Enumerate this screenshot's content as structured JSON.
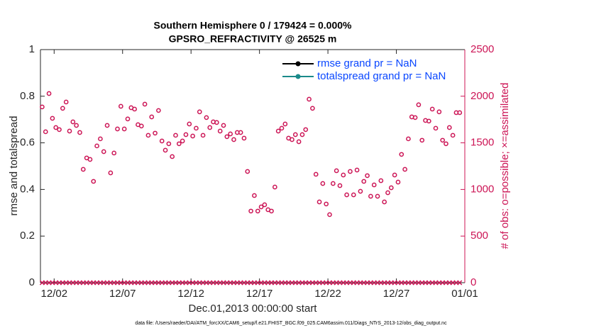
{
  "chart_data": {
    "type": "scatter",
    "title": "Southern Hemisphere 0 / 179424 = 0.000%",
    "subtitle": "GPSRO_REFRACTIVITY @ 26525 m",
    "xlabel": "Dec.01,2013 00:00:00 start",
    "ylabel": "rmse and totalspread",
    "y2label": "# of obs: o=possible; ×=assimilated",
    "footnote": "data file: /Users/raeder/DAI/ATM_forcXX/CAM6_setup/f.e21.FHIST_BGC.f09_025.CAM6assim.011/Diags_NTrS_2013-12/obs_diag_output.nc",
    "legend_position": "upper right",
    "legend": [
      {
        "name": "rmse grand pr = NaN",
        "color": "#000000"
      },
      {
        "name": "totalspread grand pr = NaN",
        "color": "#1a8a8a"
      }
    ],
    "xlim": [
      0,
      31
    ],
    "xticks": [
      {
        "value": 1,
        "label": "12/02"
      },
      {
        "value": 6,
        "label": "12/07"
      },
      {
        "value": 11,
        "label": "12/12"
      },
      {
        "value": 16,
        "label": "12/17"
      },
      {
        "value": 21,
        "label": "12/22"
      },
      {
        "value": 26,
        "label": "12/27"
      },
      {
        "value": 31,
        "label": "01/01"
      }
    ],
    "ylim": [
      0,
      1
    ],
    "yticks": [
      0,
      0.2,
      0.4,
      0.6,
      0.8,
      1
    ],
    "y2lim": [
      0,
      2500
    ],
    "y2ticks": [
      0,
      500,
      1000,
      1500,
      2000,
      2500
    ],
    "x": [
      0.125,
      0.375,
      0.625,
      0.875,
      1.125,
      1.375,
      1.625,
      1.875,
      2.125,
      2.375,
      2.625,
      2.875,
      3.125,
      3.375,
      3.625,
      3.875,
      4.125,
      4.375,
      4.625,
      4.875,
      5.125,
      5.375,
      5.625,
      5.875,
      6.125,
      6.375,
      6.625,
      6.875,
      7.125,
      7.375,
      7.625,
      7.875,
      8.125,
      8.375,
      8.625,
      8.875,
      9.125,
      9.375,
      9.625,
      9.875,
      10.125,
      10.375,
      10.625,
      10.875,
      11.125,
      11.375,
      11.625,
      11.875,
      12.125,
      12.375,
      12.625,
      12.875,
      13.125,
      13.375,
      13.625,
      13.875,
      14.125,
      14.375,
      14.625,
      14.875,
      15.125,
      15.375,
      15.625,
      15.875,
      16.125,
      16.375,
      16.625,
      16.875,
      17.125,
      17.375,
      17.625,
      17.875,
      18.125,
      18.375,
      18.625,
      18.875,
      19.125,
      19.375,
      19.625,
      19.875,
      20.125,
      20.375,
      20.625,
      20.875,
      21.125,
      21.375,
      21.625,
      21.875,
      22.125,
      22.375,
      22.625,
      22.875,
      23.125,
      23.375,
      23.625,
      23.875,
      24.125,
      24.375,
      24.625,
      24.875,
      25.125,
      25.375,
      25.625,
      25.875,
      26.125,
      26.375,
      26.625,
      26.875,
      27.125,
      27.375,
      27.625,
      27.875,
      28.125,
      28.375,
      28.625,
      28.875,
      29.125,
      29.375,
      29.625,
      29.875,
      30.125,
      30.375,
      30.625
    ],
    "series": [
      {
        "name": "possible",
        "marker": "o",
        "color": "#cc1455",
        "axis": "y2",
        "values": [
          1885,
          1619,
          2029,
          1763,
          1664,
          1642,
          1870,
          1938,
          1626,
          1725,
          1687,
          1611,
          1216,
          1338,
          1322,
          1087,
          1467,
          1543,
          1406,
          1687,
          1178,
          1391,
          1649,
          1892,
          1649,
          1756,
          1877,
          1862,
          1695,
          1680,
          1915,
          1581,
          1778,
          1604,
          1847,
          1520,
          1421,
          1490,
          1353,
          1581,
          1490,
          1520,
          1588,
          1702,
          1573,
          1657,
          1832,
          1581,
          1771,
          1664,
          1725,
          1718,
          1626,
          1687,
          1566,
          1596,
          1535,
          1611,
          1611,
          1550,
          1193,
          768,
          935,
          768,
          813,
          836,
          783,
          768,
          1026,
          1626,
          1657,
          1702,
          1550,
          1535,
          1588,
          1512,
          1588,
          1642,
          1968,
          1870,
          1163,
          866,
          1064,
          844,
          730,
          1064,
          1201,
          1041,
          1155,
          942,
          1193,
          942,
          1208,
          980,
          1087,
          1148,
          927,
          1049,
          927,
          1094,
          866,
          965,
          1018,
          1155,
          1079,
          1376,
          1216,
          1543,
          1778,
          1771,
          1908,
          1528,
          1740,
          1733,
          1862,
          1657,
          1832,
          1528,
          1490,
          1664,
          1581,
          1824,
          1824
        ]
      },
      {
        "name": "assimilated",
        "marker": "x",
        "color": "#cc1455",
        "axis": "y2",
        "values": [
          0,
          0,
          0,
          0,
          0,
          0,
          0,
          0,
          0,
          0,
          0,
          0,
          0,
          0,
          0,
          0,
          0,
          0,
          0,
          0,
          0,
          0,
          0,
          0,
          0,
          0,
          0,
          0,
          0,
          0,
          0,
          0,
          0,
          0,
          0,
          0,
          0,
          0,
          0,
          0,
          0,
          0,
          0,
          0,
          0,
          0,
          0,
          0,
          0,
          0,
          0,
          0,
          0,
          0,
          0,
          0,
          0,
          0,
          0,
          0,
          0,
          0,
          0,
          0,
          0,
          0,
          0,
          0,
          0,
          0,
          0,
          0,
          0,
          0,
          0,
          0,
          0,
          0,
          0,
          0,
          0,
          0,
          0,
          0,
          0,
          0,
          0,
          0,
          0,
          0,
          0,
          0,
          0,
          0,
          0,
          0,
          0,
          0,
          0,
          0,
          0,
          0,
          0,
          0,
          0,
          0,
          0,
          0,
          0,
          0,
          0,
          0,
          0,
          0,
          0,
          0,
          0,
          0,
          0,
          0,
          0,
          0,
          0
        ]
      }
    ]
  }
}
